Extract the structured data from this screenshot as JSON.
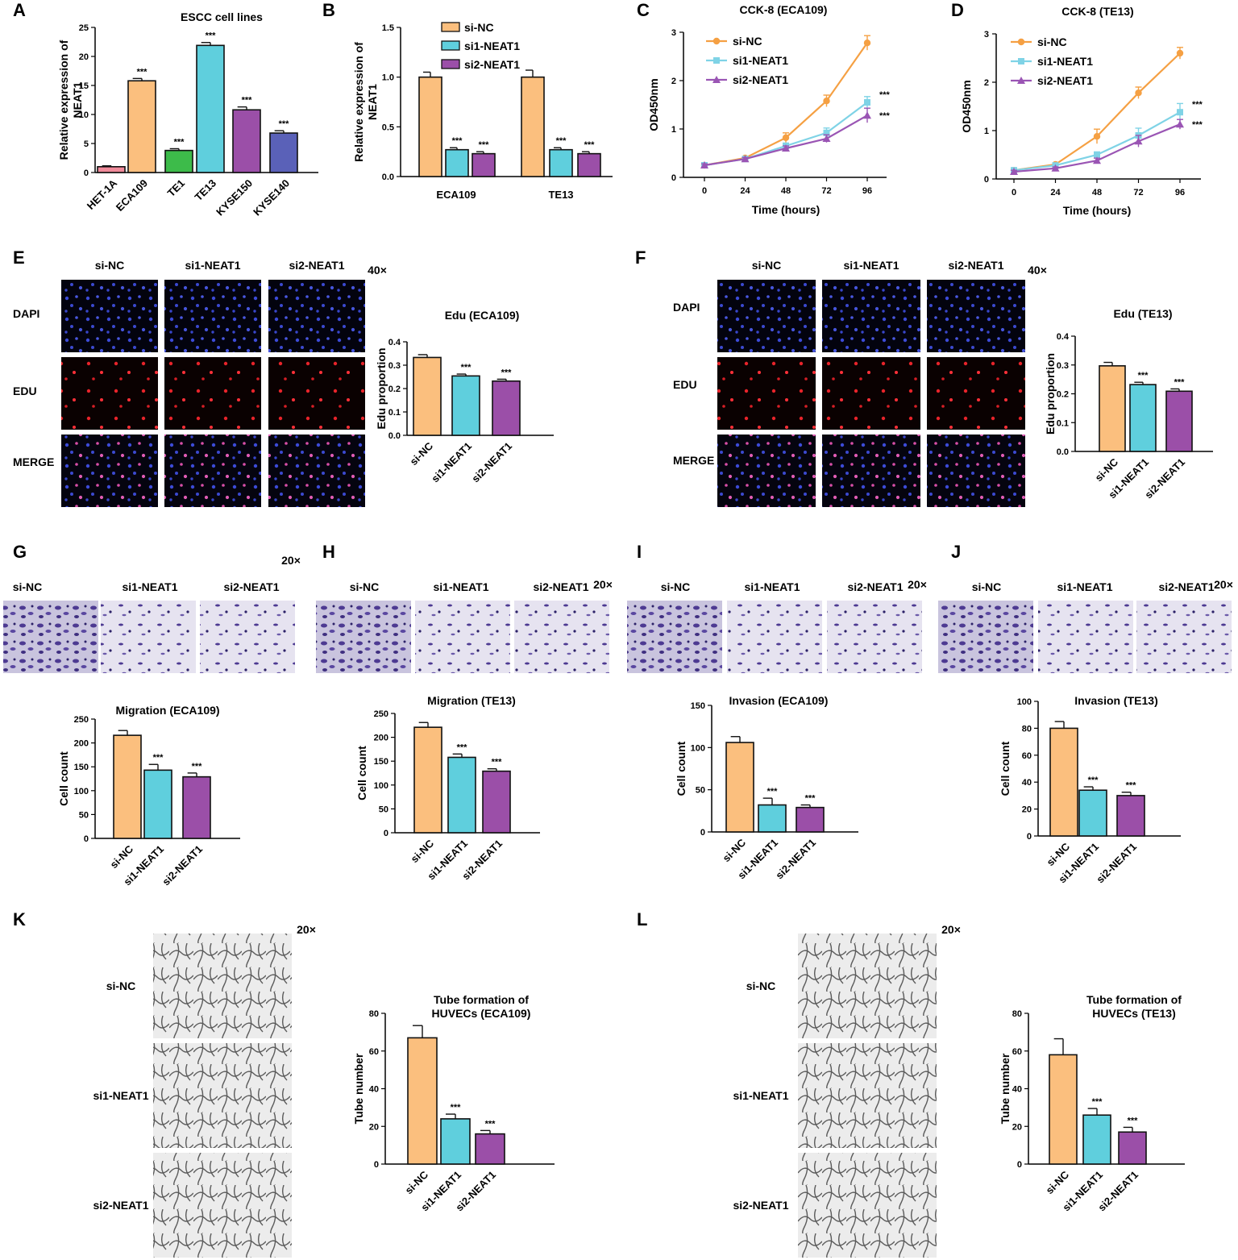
{
  "colors": {
    "orange": "#fbbf7e",
    "cyan": "#5fcfdd",
    "purple": "#9b4fa8",
    "line_orange": "#f5a043",
    "line_cyan": "#7fd3e6",
    "line_purple": "#9a55b4",
    "pink": "#f08a9a",
    "green": "#3dbb4a",
    "indigo": "#5a61b8"
  },
  "groups": [
    "si-NC",
    "si1-NEAT1",
    "si2-NEAT1"
  ],
  "panels": {
    "E": {
      "rows": [
        "DAPI",
        "EDU",
        "MERGE"
      ],
      "mag": "40×"
    },
    "F": {
      "rows": [
        "DAPI",
        "EDU",
        "MERGE"
      ],
      "mag": "40×"
    },
    "G": {
      "mag": "20×"
    },
    "H": {
      "mag": "20×"
    },
    "I": {
      "mag": "20×"
    },
    "J": {
      "mag": "20×"
    },
    "K": {
      "mag": "20×"
    },
    "L": {
      "mag": "20×"
    }
  },
  "chart_data": [
    {
      "id": "A",
      "type": "bar",
      "title": "ESCC cell lines",
      "ylabel": "Relative expression of NEAT1",
      "categories": [
        "HET-1A",
        "ECA109",
        "TE1",
        "TE13",
        "KYSE150",
        "KYSE140"
      ],
      "values": [
        1,
        15.8,
        3.8,
        21.9,
        10.8,
        6.8
      ],
      "errors": [
        0.15,
        0.4,
        0.3,
        0.5,
        0.5,
        0.4
      ],
      "ylim": [
        0,
        25
      ],
      "yticks": [
        0,
        5,
        10,
        15,
        20,
        25
      ],
      "ytick_labels": [
        "0",
        "5",
        "10",
        "15",
        "20",
        "25"
      ],
      "sig": [
        "",
        "***",
        "***",
        "***",
        "***",
        "***"
      ],
      "bar_colors": [
        "#f08a9a",
        "#fbbf7e",
        "#3dbb4a",
        "#5fcfdd",
        "#9b4fa8",
        "#5a61b8"
      ],
      "rotate": true
    },
    {
      "id": "B",
      "type": "bar",
      "grouped": true,
      "ylabel": "Relative expression of NEAT1",
      "categories": [
        "ECA109",
        "TE13"
      ],
      "series": [
        {
          "name": "si-NC",
          "values": [
            1.0,
            1.0
          ],
          "errors": [
            0.05,
            0.07
          ],
          "sig": [
            "",
            ""
          ]
        },
        {
          "name": "si1-NEAT1",
          "values": [
            0.27,
            0.27
          ],
          "errors": [
            0.02,
            0.02
          ],
          "sig": [
            "***",
            "***"
          ]
        },
        {
          "name": "si2-NEAT1",
          "values": [
            0.23,
            0.23
          ],
          "errors": [
            0.02,
            0.02
          ],
          "sig": [
            "***",
            "***"
          ]
        }
      ],
      "ylim": [
        0,
        1.5
      ],
      "yticks": [
        0,
        0.5,
        1,
        1.5
      ],
      "ytick_labels": [
        "0.0",
        "0.5",
        "1.0",
        "1.5"
      ],
      "legend": "top-right"
    },
    {
      "id": "C",
      "type": "line",
      "title": "CCK-8 (ECA109)",
      "xlabel": "Time (hours)",
      "ylabel": "OD450nm",
      "x": [
        0,
        24,
        48,
        72,
        96
      ],
      "xlim": [
        0,
        96
      ],
      "ylim": [
        0,
        3
      ],
      "yticks": [
        0,
        1,
        2,
        3
      ],
      "ytick_labels": [
        "0",
        "1",
        "2",
        "3"
      ],
      "series": [
        {
          "name": "si-NC",
          "values": [
            0.25,
            0.4,
            0.82,
            1.58,
            2.78
          ],
          "errors": [
            0.03,
            0.03,
            0.1,
            0.12,
            0.15
          ]
        },
        {
          "name": "si1-NEAT1",
          "values": [
            0.25,
            0.38,
            0.65,
            0.92,
            1.55
          ],
          "errors": [
            0.03,
            0.03,
            0.06,
            0.1,
            0.12
          ]
        },
        {
          "name": "si2-NEAT1",
          "values": [
            0.25,
            0.38,
            0.6,
            0.8,
            1.28
          ],
          "errors": [
            0.03,
            0.03,
            0.05,
            0.08,
            0.15
          ]
        }
      ],
      "end_sig": [
        "***",
        "***"
      ],
      "legend": "top-left"
    },
    {
      "id": "D",
      "type": "line",
      "title": "CCK-8 (TE13)",
      "xlabel": "Time (hours)",
      "ylabel": "OD450nm",
      "x": [
        0,
        24,
        48,
        72,
        96
      ],
      "xlim": [
        0,
        96
      ],
      "ylim": [
        0,
        3
      ],
      "yticks": [
        0,
        1,
        2,
        3
      ],
      "ytick_labels": [
        "0",
        "1",
        "2",
        "3"
      ],
      "series": [
        {
          "name": "si-NC",
          "values": [
            0.18,
            0.3,
            0.88,
            1.78,
            2.6
          ],
          "errors": [
            0.03,
            0.03,
            0.15,
            0.12,
            0.12
          ]
        },
        {
          "name": "si1-NEAT1",
          "values": [
            0.18,
            0.28,
            0.5,
            0.9,
            1.38
          ],
          "errors": [
            0.03,
            0.03,
            0.06,
            0.15,
            0.18
          ]
        },
        {
          "name": "si2-NEAT1",
          "values": [
            0.15,
            0.22,
            0.38,
            0.78,
            1.13
          ],
          "errors": [
            0.03,
            0.03,
            0.05,
            0.12,
            0.1
          ]
        }
      ],
      "end_sig": [
        "***",
        "***"
      ],
      "legend": "top-left"
    },
    {
      "id": "E",
      "type": "bar",
      "title": "Edu (ECA109)",
      "ylabel": "Edu proportion",
      "categories": [
        "si-NC",
        "si1-NEAT1",
        "si2-NEAT1"
      ],
      "values": [
        0.333,
        0.254,
        0.232
      ],
      "errors": [
        0.012,
        0.008,
        0.008
      ],
      "ylim": [
        0,
        0.4
      ],
      "yticks": [
        0,
        0.1,
        0.2,
        0.3,
        0.4
      ],
      "ytick_labels": [
        "0.0",
        "0.1",
        "0.2",
        "0.3",
        "0.4"
      ],
      "sig": [
        "",
        "***",
        "***"
      ]
    },
    {
      "id": "F",
      "type": "bar",
      "title": "Edu (TE13)",
      "ylabel": "Edu proportion",
      "categories": [
        "si-NC",
        "si1-NEAT1",
        "si2-NEAT1"
      ],
      "values": [
        0.297,
        0.232,
        0.209
      ],
      "errors": [
        0.012,
        0.008,
        0.008
      ],
      "ylim": [
        0,
        0.4
      ],
      "yticks": [
        0,
        0.1,
        0.2,
        0.3,
        0.4
      ],
      "ytick_labels": [
        "0.0",
        "0.1",
        "0.2",
        "0.3",
        "0.4"
      ],
      "sig": [
        "",
        "***",
        "***"
      ]
    },
    {
      "id": "G",
      "type": "bar",
      "title": "Migration (ECA109)",
      "ylabel": "Cell count",
      "categories": [
        "si-NC",
        "si1-NEAT1",
        "si2-NEAT1"
      ],
      "values": [
        216,
        143,
        129
      ],
      "errors": [
        10,
        12,
        8
      ],
      "ylim": [
        0,
        250
      ],
      "yticks": [
        0,
        50,
        100,
        150,
        200,
        250
      ],
      "ytick_labels": [
        "0",
        "50",
        "100",
        "150",
        "200",
        "250"
      ],
      "sig": [
        "",
        "***",
        "***"
      ]
    },
    {
      "id": "H",
      "type": "bar",
      "title": "Migration (TE13)",
      "ylabel": "Cell count",
      "categories": [
        "si-NC",
        "si1-NEAT1",
        "si2-NEAT1"
      ],
      "values": [
        221,
        158,
        129
      ],
      "errors": [
        10,
        7,
        5
      ],
      "ylim": [
        0,
        250
      ],
      "yticks": [
        0,
        50,
        100,
        150,
        200,
        250
      ],
      "ytick_labels": [
        "0",
        "50",
        "100",
        "150",
        "200",
        "250"
      ],
      "sig": [
        "",
        "***",
        "***"
      ]
    },
    {
      "id": "I",
      "type": "bar",
      "title": "Invasion (ECA109)",
      "ylabel": "Cell count",
      "categories": [
        "si-NC",
        "si1-NEAT1",
        "si2-NEAT1"
      ],
      "values": [
        106,
        32,
        29
      ],
      "errors": [
        7,
        8,
        3
      ],
      "ylim": [
        0,
        150
      ],
      "yticks": [
        0,
        50,
        100,
        150
      ],
      "ytick_labels": [
        "0",
        "50",
        "100",
        "150"
      ],
      "sig": [
        "",
        "***",
        "***"
      ]
    },
    {
      "id": "J",
      "type": "bar",
      "title": "Invasion (TE13)",
      "ylabel": "Cell count",
      "categories": [
        "si-NC",
        "si1-NEAT1",
        "si2-NEAT1"
      ],
      "values": [
        80,
        34,
        30
      ],
      "errors": [
        5,
        2.5,
        2.5
      ],
      "ylim": [
        0,
        100
      ],
      "yticks": [
        0,
        20,
        40,
        60,
        80,
        100
      ],
      "ytick_labels": [
        "0",
        "20",
        "40",
        "60",
        "80",
        "100"
      ],
      "sig": [
        "",
        "***",
        "***"
      ]
    },
    {
      "id": "K",
      "type": "bar",
      "title": "Tube formation of HUVECs (ECA109)",
      "title_lines": [
        "Tube formation of",
        "HUVECs (ECA109)"
      ],
      "ylabel": "Tube number",
      "categories": [
        "si-NC",
        "si1-NEAT1",
        "si2-NEAT1"
      ],
      "values": [
        67,
        24,
        16
      ],
      "errors": [
        6.5,
        2.5,
        1.8
      ],
      "ylim": [
        0,
        80
      ],
      "yticks": [
        0,
        20,
        40,
        60,
        80
      ],
      "ytick_labels": [
        "0",
        "20",
        "40",
        "60",
        "80"
      ],
      "sig": [
        "",
        "***",
        "***"
      ]
    },
    {
      "id": "L",
      "type": "bar",
      "title": "Tube formation of HUVECs (TE13)",
      "title_lines": [
        "Tube formation of",
        "HUVECs (TE13)"
      ],
      "ylabel": "Tube number",
      "categories": [
        "si-NC",
        "si1-NEAT1",
        "si2-NEAT1"
      ],
      "values": [
        58,
        26,
        17
      ],
      "errors": [
        8.5,
        3.5,
        2.5
      ],
      "ylim": [
        0,
        80
      ],
      "yticks": [
        0,
        20,
        40,
        60,
        80
      ],
      "ytick_labels": [
        "0",
        "20",
        "40",
        "60",
        "80"
      ],
      "sig": [
        "",
        "***",
        "***"
      ]
    }
  ]
}
